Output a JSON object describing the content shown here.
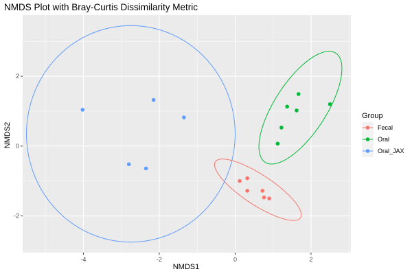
{
  "chart_data": {
    "type": "scatter",
    "title": "NMDS Plot with Bray-Curtis Dissimilarity Metric",
    "xlabel": "NMDS1",
    "ylabel": "NMDS2",
    "xlim": [
      -5.6,
      3.05
    ],
    "ylim": [
      -3.05,
      3.75
    ],
    "xticks": [
      -4,
      -2,
      0,
      2
    ],
    "yticks": [
      -2,
      0,
      2
    ],
    "x_tick_labels": [
      "-4",
      "-2",
      "0",
      "2"
    ],
    "y_tick_labels": [
      "-2",
      "0",
      "2"
    ],
    "grid": true,
    "legend": {
      "title": "Group",
      "position": "right"
    },
    "series": [
      {
        "name": "Fecal",
        "color": "#F8766D",
        "points": [
          {
            "x": 0.12,
            "y": -1.0
          },
          {
            "x": 0.32,
            "y": -0.92
          },
          {
            "x": 0.32,
            "y": -1.28
          },
          {
            "x": 0.72,
            "y": -1.28
          },
          {
            "x": 0.76,
            "y": -1.47
          },
          {
            "x": 0.9,
            "y": -1.5
          }
        ],
        "ellipse": {
          "cx": 0.6,
          "cy": -1.25,
          "rx": 1.38,
          "ry": 0.42,
          "angle_deg": -36
        }
      },
      {
        "name": "Oral",
        "color": "#00BA38",
        "points": [
          {
            "x": 1.12,
            "y": 0.07
          },
          {
            "x": 1.22,
            "y": 0.53
          },
          {
            "x": 1.37,
            "y": 1.13
          },
          {
            "x": 1.62,
            "y": 1.02
          },
          {
            "x": 1.67,
            "y": 1.49
          },
          {
            "x": 2.5,
            "y": 1.2
          }
        ],
        "ellipse": {
          "cx": 1.72,
          "cy": 1.1,
          "rx": 1.82,
          "ry": 0.7,
          "angle_deg": 60
        }
      },
      {
        "name": "Oral_JAX",
        "color": "#619CFF",
        "points": [
          {
            "x": -4.02,
            "y": 1.04
          },
          {
            "x": -2.15,
            "y": 1.32
          },
          {
            "x": -1.35,
            "y": 0.82
          },
          {
            "x": -2.8,
            "y": -0.52
          },
          {
            "x": -2.35,
            "y": -0.64
          }
        ],
        "ellipse": {
          "cx": -2.75,
          "cy": 0.35,
          "rx": 2.75,
          "ry": 3.1,
          "angle_deg": 0
        }
      }
    ]
  }
}
